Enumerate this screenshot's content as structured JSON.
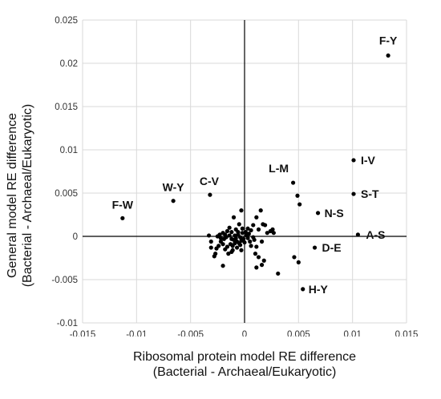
{
  "chart_data": {
    "type": "scatter",
    "xlabel_line1": "Ribosomal protein model RE difference",
    "xlabel_line2": "(Bacterial - Archaeal/Eukaryotic)",
    "ylabel_line1": "General model RE difference",
    "ylabel_line2": "(Bacterial - Archaeal/Eukaryotic)",
    "xlim": [
      -0.015,
      0.015
    ],
    "ylim": [
      -0.01,
      0.025
    ],
    "xticks": [
      -0.015,
      -0.01,
      -0.005,
      0,
      0.005,
      0.01,
      0.015
    ],
    "xtick_labels": [
      "-0.015",
      "-0.01",
      "-0.005",
      "0",
      "0.005",
      "0.01",
      "0.015"
    ],
    "yticks": [
      -0.01,
      -0.005,
      0,
      0.005,
      0.01,
      0.015,
      0.02,
      0.025
    ],
    "ytick_labels": [
      "-0.01",
      "-0.005",
      "0",
      "0.005",
      "0.01",
      "0.015",
      "0.02",
      "0.025"
    ],
    "grid": true,
    "marker_color": "#000000",
    "labeled_points": [
      {
        "label": "F-Y",
        "x": 0.0133,
        "y": 0.0209
      },
      {
        "label": "I-V",
        "x": 0.0101,
        "y": 0.0088
      },
      {
        "label": "S-T",
        "x": 0.0101,
        "y": 0.0049
      },
      {
        "label": "L-M",
        "x": 0.0045,
        "y": 0.0062
      },
      {
        "label": "N-S",
        "x": 0.0068,
        "y": 0.0027
      },
      {
        "label": "A-S",
        "x": 0.0105,
        "y": 0.0002
      },
      {
        "label": "D-E",
        "x": 0.0065,
        "y": -0.0013
      },
      {
        "label": "H-Y",
        "x": 0.0054,
        "y": -0.0061
      },
      {
        "label": "W-Y",
        "x": -0.0066,
        "y": 0.0041
      },
      {
        "label": "C-V",
        "x": -0.0032,
        "y": 0.0048
      },
      {
        "label": "F-W",
        "x": -0.0113,
        "y": 0.0021
      }
    ],
    "points": [
      [
        0.0049,
        0.0047
      ],
      [
        0.0051,
        0.0037
      ],
      [
        0.0046,
        -0.0024
      ],
      [
        0.005,
        -0.003
      ],
      [
        0.0031,
        -0.0043
      ],
      [
        0.0016,
        -0.0033
      ],
      [
        0.0013,
        -0.0024
      ],
      [
        0.0011,
        -0.0012
      ],
      [
        0.0016,
        -0.0006
      ],
      [
        0.0021,
        0.0004
      ],
      [
        0.0026,
        0.0008
      ],
      [
        0.0027,
        0.0004
      ],
      [
        0.0017,
        0.0014
      ],
      [
        0.0015,
        0.003
      ],
      [
        0.0011,
        0.0022
      ],
      [
        0.0008,
        0.0013
      ],
      [
        0.0006,
        0.0007
      ],
      [
        0.0004,
        0.0003
      ],
      [
        0.0003,
        -0.0002
      ],
      [
        0.0009,
        -0.0004
      ],
      [
        0.0006,
        -0.0011
      ],
      [
        0.001,
        -0.002
      ],
      [
        0.0011,
        -0.0036
      ],
      [
        0.0018,
        -0.0028
      ],
      [
        0.0002,
        0.0001
      ],
      [
        0.0001,
        0.0005
      ],
      [
        0.0005,
        -0.0006
      ],
      [
        0.0013,
        0.0008
      ],
      [
        0.0019,
        0.0013
      ],
      [
        0.0024,
        0.0006
      ],
      [
        0.0008,
        -0.0001
      ],
      [
        -0.0003,
        0.003
      ],
      [
        -0.001,
        0.0022
      ],
      [
        -0.0005,
        0.0014
      ],
      [
        -0.0002,
        0.0009
      ],
      [
        -0.0008,
        0.0008
      ],
      [
        -0.0012,
        0.0005
      ],
      [
        -0.0016,
        0.0006
      ],
      [
        -0.002,
        0.0004
      ],
      [
        -0.0023,
        0.0002
      ],
      [
        -0.0025,
        0.0
      ],
      [
        -0.0022,
        -0.0002
      ],
      [
        -0.0019,
        -0.0003
      ],
      [
        -0.0017,
        -0.0001
      ],
      [
        -0.0014,
        0.0001
      ],
      [
        -0.0012,
        -0.0003
      ],
      [
        -0.001,
        -0.0004
      ],
      [
        -0.0008,
        -0.0002
      ],
      [
        -0.0006,
        0.0002
      ],
      [
        -0.0004,
        -0.0001
      ],
      [
        -0.0003,
        -0.0005
      ],
      [
        -0.0005,
        -0.0008
      ],
      [
        -0.0007,
        -0.0006
      ],
      [
        -0.0009,
        -0.0008
      ],
      [
        -0.0011,
        -0.0011
      ],
      [
        -0.0013,
        -0.0009
      ],
      [
        -0.0016,
        -0.0012
      ],
      [
        -0.0018,
        -0.0015
      ],
      [
        -0.002,
        -0.0009
      ],
      [
        -0.0022,
        -0.0006
      ],
      [
        -0.0024,
        -0.0011
      ],
      [
        -0.0026,
        -0.0014
      ],
      [
        -0.0027,
        -0.002
      ],
      [
        -0.0031,
        -0.0006
      ],
      [
        -0.0033,
        0.0001
      ],
      [
        -0.0031,
        -0.0013
      ],
      [
        -0.0028,
        -0.0023
      ],
      [
        -0.002,
        -0.0034
      ],
      [
        -0.0015,
        -0.002
      ],
      [
        -0.0012,
        -0.0018
      ],
      [
        -0.0007,
        -0.0013
      ],
      [
        -0.0004,
        -0.001
      ],
      [
        -0.0001,
        -0.0003
      ],
      [
        -0.0002,
        0.0004
      ],
      [
        -0.0014,
        0.001
      ],
      [
        -0.0018,
        0.0002
      ],
      [
        -0.0006,
        0.0005
      ],
      [
        -0.0009,
        0.0001
      ],
      [
        -0.0011,
        -0.0016
      ],
      [
        -0.0003,
        -0.0016
      ],
      [
        0.0,
        -0.0007
      ],
      [
        0.0003,
        0.0009
      ]
    ]
  }
}
